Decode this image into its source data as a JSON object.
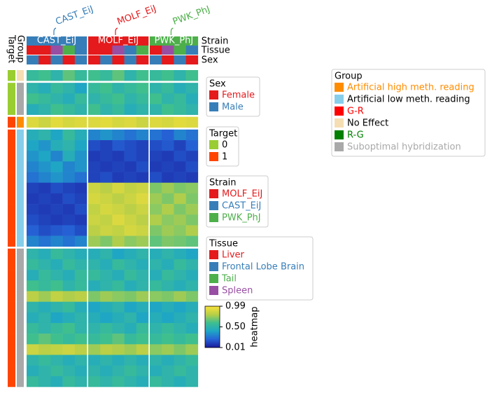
{
  "chart_data": {
    "type": "heatmap",
    "column_groups": [
      {
        "name": "CAST_EiJ",
        "color": "#377eb8"
      },
      {
        "name": "MOLF_EiJ",
        "color": "#e41a1c"
      },
      {
        "name": "PWK_PhJ",
        "color": "#4daf4a"
      }
    ],
    "annotation_labels": {
      "strain": "Strain",
      "tissue": "Tissue",
      "sex": "Sex",
      "group": "Group",
      "target": "Target"
    },
    "columns": {
      "strain": [
        "CAST_EiJ",
        "CAST_EiJ",
        "CAST_EiJ",
        "CAST_EiJ",
        "CAST_EiJ",
        "MOLF_EiJ",
        "MOLF_EiJ",
        "MOLF_EiJ",
        "MOLF_EiJ",
        "MOLF_EiJ",
        "PWK_PhJ",
        "PWK_PhJ",
        "PWK_PhJ",
        "PWK_PhJ"
      ],
      "tissue": [
        "Liver",
        "Liver",
        "Spleen",
        "Tail",
        "Frontal Lobe Brain",
        "Liver",
        "Liver",
        "Spleen",
        "Frontal Lobe Brain",
        "Tail",
        "Liver",
        "Spleen",
        "Tail",
        "Frontal Lobe Brain"
      ],
      "sex": [
        "Male",
        "Female",
        "Male",
        "Female",
        "Male",
        "Female",
        "Male",
        "Female",
        "Male",
        "Female",
        "Male",
        "Female",
        "Male",
        "Female"
      ]
    },
    "rows": {
      "target": [
        "0",
        "0",
        "0",
        "0",
        "1",
        "1",
        "1",
        "1",
        "1",
        "1",
        "1",
        "1",
        "1",
        "1",
        "1",
        "1",
        "1",
        "1",
        "1",
        "1",
        "1",
        "1",
        "1",
        "1",
        "1",
        "1",
        "1",
        "1",
        "1"
      ],
      "group": [
        "No Effect",
        "Suboptimal hybridization",
        "Suboptimal hybridization",
        "Suboptimal hybridization",
        "Artificial high meth. reading",
        "Artificial low meth. reading",
        "Artificial low meth. reading",
        "Artificial low meth. reading",
        "Artificial low meth. reading",
        "Artificial low meth. reading",
        "Artificial low meth. reading",
        "Artificial low meth. reading",
        "Artificial low meth. reading",
        "Artificial low meth. reading",
        "Artificial low meth. reading",
        "Artificial low meth. reading",
        "Suboptimal hybridization",
        "Suboptimal hybridization",
        "Suboptimal hybridization",
        "Suboptimal hybridization",
        "Suboptimal hybridization",
        "Suboptimal hybridization",
        "Suboptimal hybridization",
        "Suboptimal hybridization",
        "Suboptimal hybridization",
        "Suboptimal hybridization",
        "Suboptimal hybridization",
        "Suboptimal hybridization",
        "Suboptimal hybridization"
      ]
    },
    "matrix": [
      [
        0.55,
        0.6,
        0.5,
        0.65,
        0.55,
        0.6,
        0.55,
        0.65,
        0.5,
        0.6,
        0.55,
        0.6,
        0.5,
        0.6
      ],
      [
        0.5,
        0.45,
        0.55,
        0.5,
        0.4,
        0.55,
        0.6,
        0.5,
        0.55,
        0.6,
        0.5,
        0.55,
        0.45,
        0.5
      ],
      [
        0.6,
        0.55,
        0.5,
        0.45,
        0.55,
        0.5,
        0.55,
        0.6,
        0.5,
        0.55,
        0.6,
        0.5,
        0.55,
        0.45
      ],
      [
        0.45,
        0.5,
        0.6,
        0.55,
        0.5,
        0.6,
        0.5,
        0.55,
        0.45,
        0.5,
        0.5,
        0.6,
        0.55,
        0.5
      ],
      [
        0.9,
        0.85,
        0.92,
        0.88,
        0.9,
        0.9,
        0.92,
        0.88,
        0.9,
        0.85,
        0.9,
        0.88,
        0.92,
        0.9
      ],
      [
        0.45,
        0.5,
        0.4,
        0.55,
        0.45,
        0.3,
        0.35,
        0.3,
        0.25,
        0.3,
        0.25,
        0.2,
        0.3,
        0.25
      ],
      [
        0.4,
        0.35,
        0.45,
        0.5,
        0.4,
        0.15,
        0.12,
        0.18,
        0.15,
        0.12,
        0.15,
        0.18,
        0.12,
        0.2
      ],
      [
        0.35,
        0.4,
        0.3,
        0.45,
        0.35,
        0.1,
        0.12,
        0.1,
        0.15,
        0.12,
        0.12,
        0.1,
        0.15,
        0.12
      ],
      [
        0.3,
        0.35,
        0.4,
        0.3,
        0.35,
        0.12,
        0.1,
        0.12,
        0.1,
        0.15,
        0.1,
        0.12,
        0.1,
        0.15
      ],
      [
        0.25,
        0.3,
        0.35,
        0.3,
        0.25,
        0.12,
        0.15,
        0.1,
        0.12,
        0.1,
        0.15,
        0.1,
        0.12,
        0.1
      ],
      [
        0.12,
        0.1,
        0.15,
        0.12,
        0.1,
        0.85,
        0.8,
        0.88,
        0.82,
        0.85,
        0.7,
        0.75,
        0.7,
        0.72
      ],
      [
        0.1,
        0.12,
        0.1,
        0.15,
        0.12,
        0.88,
        0.85,
        0.8,
        0.85,
        0.9,
        0.75,
        0.7,
        0.78,
        0.7
      ],
      [
        0.12,
        0.1,
        0.12,
        0.1,
        0.15,
        0.82,
        0.88,
        0.85,
        0.8,
        0.85,
        0.72,
        0.78,
        0.7,
        0.75
      ],
      [
        0.15,
        0.12,
        0.1,
        0.12,
        0.1,
        0.85,
        0.82,
        0.9,
        0.85,
        0.8,
        0.78,
        0.72,
        0.75,
        0.7
      ],
      [
        0.2,
        0.15,
        0.18,
        0.2,
        0.15,
        0.8,
        0.85,
        0.82,
        0.88,
        0.85,
        0.7,
        0.75,
        0.72,
        0.78
      ],
      [
        0.3,
        0.25,
        0.3,
        0.25,
        0.3,
        0.75,
        0.7,
        0.78,
        0.72,
        0.75,
        0.65,
        0.7,
        0.68,
        0.65
      ],
      [
        0.5,
        0.45,
        0.55,
        0.5,
        0.45,
        0.45,
        0.5,
        0.4,
        0.45,
        0.5,
        0.45,
        0.5,
        0.45,
        0.4
      ],
      [
        0.55,
        0.5,
        0.45,
        0.55,
        0.5,
        0.5,
        0.45,
        0.55,
        0.5,
        0.45,
        0.5,
        0.45,
        0.55,
        0.5
      ],
      [
        0.45,
        0.55,
        0.5,
        0.45,
        0.55,
        0.55,
        0.5,
        0.45,
        0.55,
        0.5,
        0.45,
        0.55,
        0.5,
        0.45
      ],
      [
        0.6,
        0.55,
        0.6,
        0.5,
        0.55,
        0.45,
        0.5,
        0.55,
        0.45,
        0.5,
        0.55,
        0.5,
        0.45,
        0.5
      ],
      [
        0.8,
        0.75,
        0.82,
        0.78,
        0.8,
        0.7,
        0.75,
        0.72,
        0.7,
        0.75,
        0.72,
        0.7,
        0.75,
        0.7
      ],
      [
        0.5,
        0.45,
        0.5,
        0.55,
        0.45,
        0.4,
        0.45,
        0.5,
        0.4,
        0.45,
        0.4,
        0.45,
        0.4,
        0.45
      ],
      [
        0.45,
        0.5,
        0.4,
        0.45,
        0.5,
        0.45,
        0.4,
        0.45,
        0.5,
        0.4,
        0.45,
        0.4,
        0.45,
        0.5
      ],
      [
        0.55,
        0.5,
        0.55,
        0.6,
        0.5,
        0.5,
        0.55,
        0.5,
        0.45,
        0.55,
        0.5,
        0.55,
        0.5,
        0.45
      ],
      [
        0.6,
        0.65,
        0.6,
        0.55,
        0.6,
        0.55,
        0.6,
        0.65,
        0.55,
        0.6,
        0.55,
        0.6,
        0.55,
        0.6
      ],
      [
        0.85,
        0.8,
        0.82,
        0.85,
        0.8,
        0.75,
        0.8,
        0.78,
        0.75,
        0.8,
        0.72,
        0.75,
        0.7,
        0.75
      ],
      [
        0.5,
        0.55,
        0.5,
        0.45,
        0.5,
        0.45,
        0.5,
        0.45,
        0.5,
        0.45,
        0.5,
        0.45,
        0.5,
        0.55
      ],
      [
        0.45,
        0.5,
        0.55,
        0.5,
        0.45,
        0.5,
        0.45,
        0.5,
        0.55,
        0.5,
        0.45,
        0.5,
        0.55,
        0.5
      ],
      [
        0.55,
        0.5,
        0.45,
        0.55,
        0.5,
        0.55,
        0.5,
        0.55,
        0.5,
        0.45,
        0.55,
        0.5,
        0.45,
        0.5
      ]
    ],
    "legends": [
      {
        "title": "Sex",
        "items": [
          {
            "label": "Female",
            "color": "#e41a1c",
            "text_color": "#e41a1c"
          },
          {
            "label": "Male",
            "color": "#377eb8",
            "text_color": "#377eb8"
          }
        ]
      },
      {
        "title": "Target",
        "items": [
          {
            "label": "0",
            "color": "#9acd32",
            "text_color": "#000000"
          },
          {
            "label": "1",
            "color": "#ff4500",
            "text_color": "#000000"
          }
        ]
      },
      {
        "title": "Strain",
        "items": [
          {
            "label": "MOLF_EiJ",
            "color": "#e41a1c",
            "text_color": "#e41a1c"
          },
          {
            "label": "CAST_EiJ",
            "color": "#377eb8",
            "text_color": "#377eb8"
          },
          {
            "label": "PWK_PhJ",
            "color": "#4daf4a",
            "text_color": "#4daf4a"
          }
        ]
      },
      {
        "title": "Tissue",
        "items": [
          {
            "label": "Liver",
            "color": "#e41a1c",
            "text_color": "#e41a1c"
          },
          {
            "label": "Frontal Lobe Brain",
            "color": "#377eb8",
            "text_color": "#377eb8"
          },
          {
            "label": "Tail",
            "color": "#4daf4a",
            "text_color": "#4daf4a"
          },
          {
            "label": "Spleen",
            "color": "#984ea3",
            "text_color": "#984ea3"
          }
        ]
      },
      {
        "title": "Group",
        "items": [
          {
            "label": "Artificial high meth. reading",
            "color": "#ff8c00",
            "text_color": "#ff8c00"
          },
          {
            "label": "Artificial low meth. reading",
            "color": "#87ceeb",
            "text_color": "#000000"
          },
          {
            "label": "G-R",
            "color": "#ff0000",
            "text_color": "#ff0000"
          },
          {
            "label": "No Effect",
            "color": "#f5deb3",
            "text_color": "#000000"
          },
          {
            "label": "R-G",
            "color": "#008000",
            "text_color": "#008000"
          },
          {
            "label": "Suboptimal hybridization",
            "color": "#a9a9a9",
            "text_color": "#a9a9a9"
          }
        ]
      }
    ],
    "colorbar": {
      "label": "heatmap",
      "lim": [
        0.01,
        0.99
      ],
      "ticks": [
        0.01,
        {
          "value": 0.5,
          "label": "0.50"
        },
        0.99
      ],
      "colors": [
        "#1a1a9a",
        "#2563d6",
        "#1fa7c4",
        "#3fbf8f",
        "#b9cf46",
        "#f9e23a"
      ]
    }
  }
}
